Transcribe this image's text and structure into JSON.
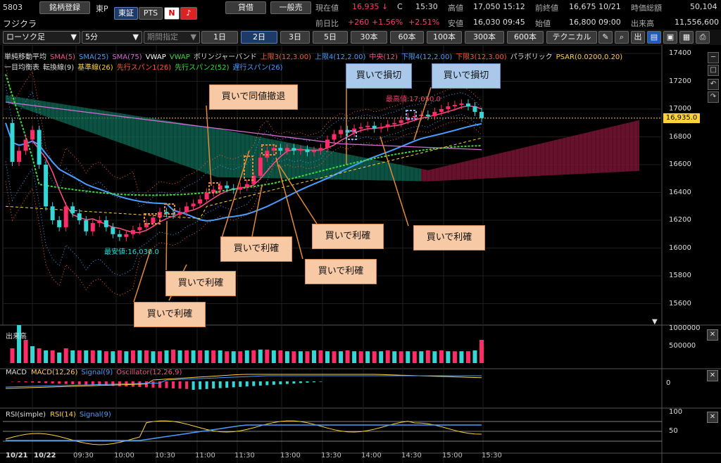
{
  "header": {
    "code": "5803",
    "register_btn": "銘柄登録",
    "market_short": "東P",
    "exch_tse": "東証",
    "exch_pts": "PTS",
    "name": "フジクラ",
    "credit_btn": "貸借",
    "general_btn": "一般売",
    "current_label": "現在値",
    "current_value": "16,935",
    "current_arrow": "↓",
    "current_flag": "C",
    "current_time": "15:30",
    "high_label": "高値",
    "high_value": "17,050",
    "high_time": "15:12",
    "prev_close_label": "前終値",
    "prev_close_value": "16,675",
    "prev_close_date": "10/21",
    "market_cap_label": "時価総額",
    "market_cap_value": "50,104",
    "change_label": "前日比",
    "change_value": "+260",
    "change_pct": "+1.56%",
    "change_pct2": "+2.51%",
    "low_label": "安値",
    "low_value": "16,030",
    "low_time": "09:45",
    "open_label": "始値",
    "open_value": "16,800",
    "open_time": "09:00",
    "volume_label": "出来高",
    "volume_value": "11,556,600"
  },
  "toolbar": {
    "chart_type": "ローソク足",
    "interval": "5分",
    "period": "期間指定",
    "ranges": [
      "1日",
      "2日",
      "3日",
      "5日",
      "30本",
      "60本",
      "100本",
      "300本",
      "600本"
    ],
    "selected_range": 1,
    "technical_btn": "テクニカル",
    "icons": [
      "pen-icon",
      "zoom-icon",
      "volume-icon",
      "chart-icon",
      "save-icon",
      "layout-icon",
      "print-icon",
      "settings-icon"
    ]
  },
  "legend": {
    "line1": [
      {
        "text": "単純移動平均",
        "color": "#dddddd"
      },
      {
        "text": "SMA(5)",
        "color": "#ff4f8a"
      },
      {
        "text": "SMA(25)",
        "color": "#4a9dff"
      },
      {
        "text": "SMA(75)",
        "color": "#d36bd3"
      },
      {
        "text": "VWAP",
        "color": "#ffffff"
      },
      {
        "text": "VWAP",
        "color": "#3adb3a"
      },
      {
        "text": "ボリンジャーバンド",
        "color": "#dddddd"
      },
      {
        "text": "上限3(12,3.00)",
        "color": "#ff5a3a"
      },
      {
        "text": "上限4(12,2.00)",
        "color": "#4a9dff"
      },
      {
        "text": "中央(12)",
        "color": "#ff4f8a"
      },
      {
        "text": "下限4(12,2.00)",
        "color": "#4a9dff"
      },
      {
        "text": "下限3(12,3.00)",
        "color": "#ff5a3a"
      },
      {
        "text": "パラボリック",
        "color": "#dddddd"
      },
      {
        "text": "PSAR(0.0200,0.20)",
        "color": "#ffd23a"
      }
    ],
    "line2": [
      {
        "text": "一目均衡表",
        "color": "#dddddd"
      },
      {
        "text": "転換線(9)",
        "color": "#dddddd"
      },
      {
        "text": "基準線(26)",
        "color": "#ffd23a"
      },
      {
        "text": "先行スパン1(26)",
        "color": "#ff5a3a"
      },
      {
        "text": "先行スパン2(52)",
        "color": "#3adb3a"
      },
      {
        "text": "遅行スパン(26)",
        "color": "#4a9dff"
      }
    ]
  },
  "price_axis": {
    "ticks": [
      "17400",
      "17200",
      "17000",
      "16800",
      "16600",
      "16400",
      "16200",
      "16000",
      "15800",
      "15600"
    ],
    "current_tag": "16,935.0"
  },
  "annotations": {
    "high_marker": "最高値:17,050.0",
    "low_marker": "最安値:16,030.0",
    "notes": [
      {
        "id": "stop1",
        "text": "買いで損切",
        "blue": true
      },
      {
        "id": "stop2",
        "text": "買いで損切",
        "blue": true
      },
      {
        "id": "same",
        "text": "買いで同値撤退",
        "blue": false
      },
      {
        "id": "p1",
        "text": "買いで利確",
        "blue": false
      },
      {
        "id": "p2",
        "text": "買いで利確",
        "blue": false
      },
      {
        "id": "p3",
        "text": "買いで利確",
        "blue": false
      },
      {
        "id": "p4",
        "text": "買いで利確",
        "blue": false
      },
      {
        "id": "p5",
        "text": "買いで利確",
        "blue": false
      },
      {
        "id": "p6",
        "text": "買いで利確",
        "blue": false
      }
    ]
  },
  "volume_panel": {
    "title": "出来高",
    "ticks": [
      "1000000",
      "500000"
    ]
  },
  "macd_panel": {
    "title": "MACD",
    "items": [
      {
        "text": "MACD(12,26)",
        "color": "#ffd23a"
      },
      {
        "text": "Signal(9)",
        "color": "#4a9dff"
      },
      {
        "text": "Oscillator(12,26,9)",
        "color": "#ff4f8a"
      }
    ],
    "ticks": [
      "0"
    ]
  },
  "rsi_panel": {
    "title": "RSI(simple)",
    "items": [
      {
        "text": "RSI(14)",
        "color": "#ffd23a"
      },
      {
        "text": "Signal(9)",
        "color": "#4a9dff"
      }
    ],
    "ticks": [
      "100",
      "50"
    ]
  },
  "time_axis": {
    "dates": [
      "10/21",
      "10/22"
    ],
    "times": [
      "09:30",
      "10:00",
      "10:30",
      "11:00",
      "11:30",
      "13:00",
      "13:30",
      "14:00",
      "14:30",
      "15:00",
      "15:30"
    ]
  },
  "colors": {
    "up": "#ff2a68",
    "down": "#35d6d6",
    "sma5": "#ff4f8a",
    "sma25": "#4a9dff",
    "sma75": "#d36bd3",
    "span2": "#3adb3a",
    "cloud_up": "#0f6d5a",
    "cloud_down": "#7a1435",
    "annotation_line": "#e08a3a"
  }
}
